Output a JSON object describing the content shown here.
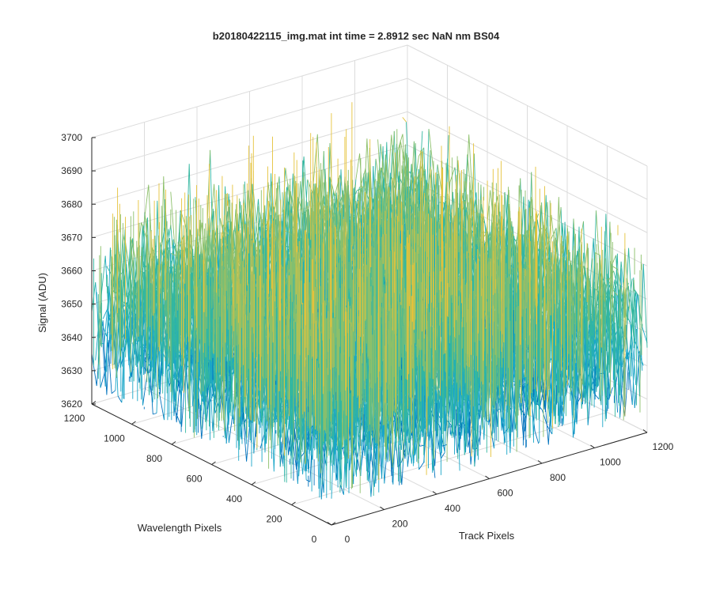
{
  "chart_data": {
    "type": "surface-3d",
    "title": "b20180422115_img.mat int time = 2.8912 sec  NaN nm BS04",
    "xlabel": "Track Pixels",
    "ylabel": "Wavelength Pixels",
    "zlabel": "Signal (ADU)",
    "xlim": [
      0,
      1200
    ],
    "ylim": [
      0,
      1200
    ],
    "zlim": [
      3620,
      3700
    ],
    "xticks": [
      "0",
      "200",
      "400",
      "600",
      "800",
      "1000",
      "1200"
    ],
    "yticks": [
      "0",
      "200",
      "400",
      "600",
      "800",
      "1000",
      "1200"
    ],
    "zticks": [
      "3620",
      "3630",
      "3640",
      "3650",
      "3660",
      "3670",
      "3680",
      "3690",
      "3700"
    ],
    "grid": true,
    "colormap": [
      "#0072bd",
      "#1aa6c8",
      "#33b7a0",
      "#8cc06a",
      "#e5c23b"
    ],
    "signal": {
      "mean": 3650,
      "min": 3625,
      "max": 3690
    }
  }
}
